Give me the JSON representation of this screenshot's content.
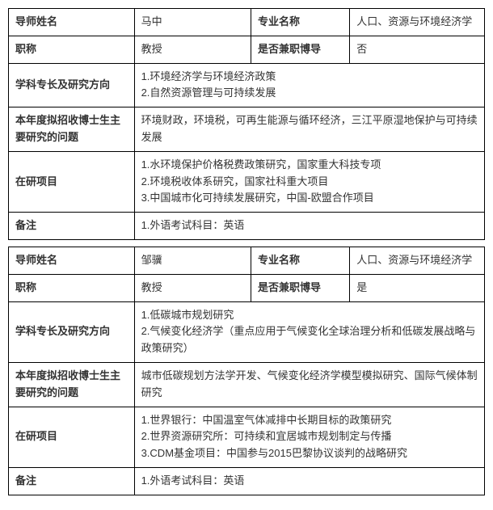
{
  "records": [
    {
      "name_label": "导师姓名",
      "name": "马中",
      "major_label": "专业名称",
      "major": "人口、资源与环境经济学",
      "title_label": "职称",
      "title": "教授",
      "dual_label": "是否兼职博导",
      "dual": "否",
      "field_label": "学科专长及研究方向",
      "field": "1.环境经济学与环境经济政策\n2.自然资源管理与可持续发展",
      "topic_label": "本年度拟招收博士生主要研究的问题",
      "topic": "环境财政，环境税，可再生能源与循环经济，三江平原湿地保护与可持续发展",
      "proj_label": "在研项目",
      "proj": "1.水环境保护价格税费政策研究，国家重大科技专项\n2.环境税收体系研究，国家社科重大项目\n3.中国城市化可持续发展研究，中国-欧盟合作项目",
      "note_label": "备注",
      "note": "1.外语考试科目：英语"
    },
    {
      "name_label": "导师姓名",
      "name": "邹骥",
      "major_label": "专业名称",
      "major": "人口、资源与环境经济学",
      "title_label": "职称",
      "title": "教授",
      "dual_label": "是否兼职博导",
      "dual": "是",
      "field_label": "学科专长及研究方向",
      "field": "1.低碳城市规划研究\n2.气候变化经济学（重点应用于气候变化全球治理分析和低碳发展战略与政策研究）",
      "topic_label": "本年度拟招收博士生主要研究的问题",
      "topic": "城市低碳规划方法学开发、气候变化经济学模型模拟研究、国际气候体制研究",
      "proj_label": "在研项目",
      "proj": "1.世界银行：中国温室气体减排中长期目标的政策研究\n2.世界资源研究所：可持续和宜居城市规划制定与传播\n3.CDM基金项目：中国参与2015巴黎协议谈判的战略研究",
      "note_label": "备注",
      "note": "1.外语考试科目：英语"
    }
  ]
}
